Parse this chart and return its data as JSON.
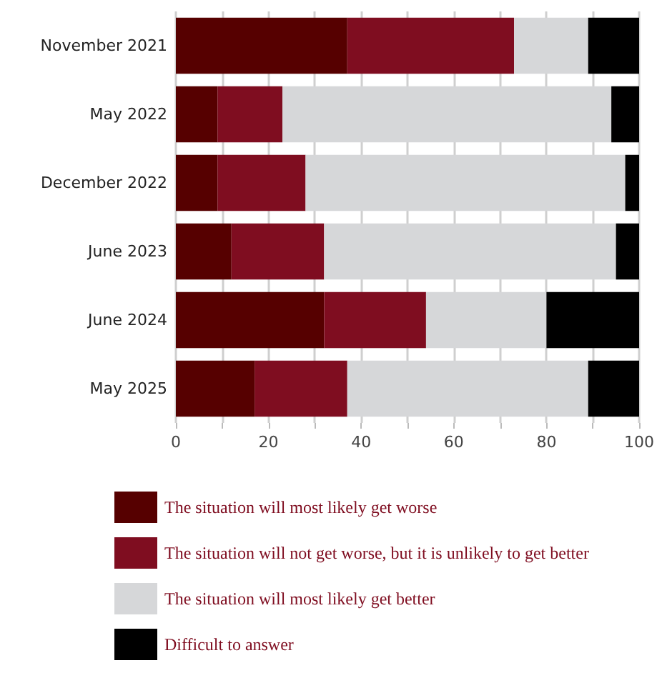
{
  "chart_data": {
    "type": "bar",
    "orientation": "horizontal",
    "stacked": true,
    "categories": [
      "November 2021",
      "May 2022",
      "December 2022",
      "June 2023",
      "June 2024",
      "May 2025"
    ],
    "series": [
      {
        "name": "The situation will most likely get worse",
        "color": "#560000",
        "values": [
          37,
          9,
          9,
          12,
          32,
          17
        ]
      },
      {
        "name": "The situation will not get worse, but it is unlikely to get better",
        "color": "#7f0d20",
        "values": [
          36,
          14,
          19,
          20,
          22,
          20
        ]
      },
      {
        "name": "The situation will most likely get better",
        "color": "#d6d7d9",
        "values": [
          16,
          71,
          69,
          63,
          26,
          52
        ]
      },
      {
        "name": "Difficult to answer",
        "color": "#000000",
        "values": [
          11,
          6,
          3,
          5,
          20,
          11
        ]
      }
    ],
    "xlim": [
      0,
      100
    ],
    "xticks": [
      0,
      {
        "value": 10,
        "label": null
      },
      20,
      {
        "value": 30,
        "label": null
      },
      40,
      {
        "value": 50,
        "label": null
      },
      60,
      {
        "value": 70,
        "label": null
      },
      80,
      {
        "value": 90,
        "label": null
      },
      100
    ],
    "grid": "x",
    "legend": "bottom"
  }
}
